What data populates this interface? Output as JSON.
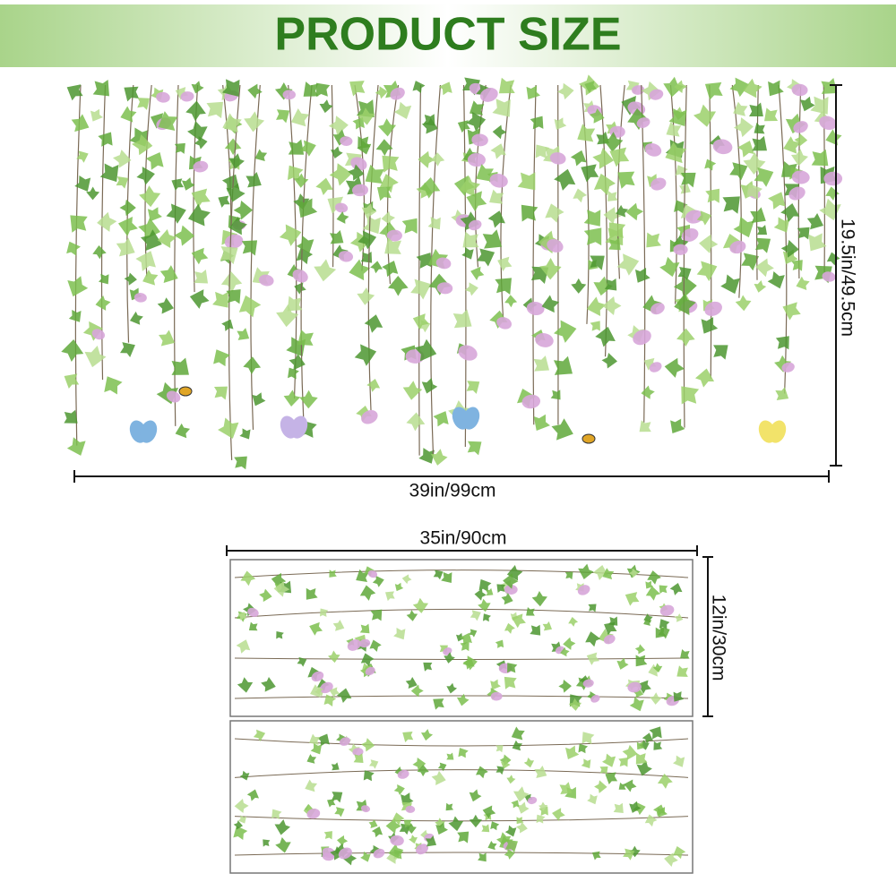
{
  "header": {
    "title": "PRODUCT SIZE"
  },
  "main_decal": {
    "height_label": "19.5in/49.5cm",
    "width_label": "39in/99cm"
  },
  "sheet": {
    "width_label": "35in/90cm",
    "height_label": "12in/30cm"
  }
}
